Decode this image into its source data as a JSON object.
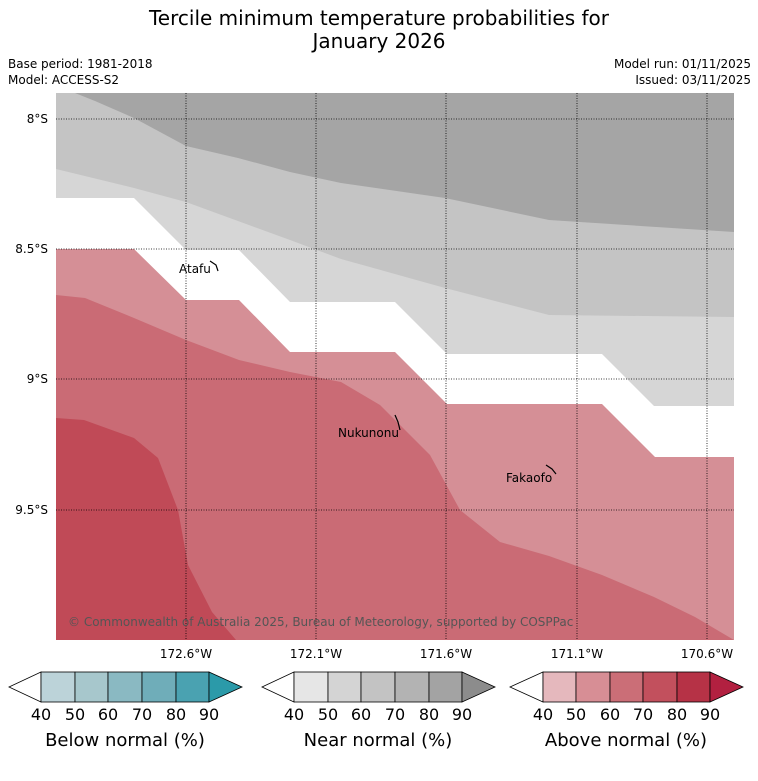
{
  "header": {
    "title_line1": "Tercile minimum temperature probabilities for",
    "title_line2": "January 2026",
    "base_period": "Base period: 1981-2018",
    "model": "Model: ACCESS-S2",
    "model_run": "Model run: 01/11/2025",
    "issued": "Issued: 03/11/2025"
  },
  "map": {
    "lat_labels": [
      "8°S",
      "8.5°S",
      "9°S",
      "9.5°S"
    ],
    "lon_labels": [
      "172.6°W",
      "172.1°W",
      "171.6°W",
      "171.1°W",
      "170.6°W"
    ],
    "places": [
      "Atafu",
      "Nukunonu",
      "Fakaofo"
    ],
    "copyright": "© Commonwealth of Australia 2025, Bureau of Meteorology, supported by COSPPac",
    "colors": {
      "near_50": "#d6d6d6",
      "near_60": "#c4c4c4",
      "near_70": "#a5a5a5",
      "above_50": "#d58f96",
      "above_60": "#ca6b75",
      "above_70": "#c04a57"
    }
  },
  "colorbars": {
    "ticks": [
      "40",
      "50",
      "60",
      "70",
      "80",
      "90"
    ],
    "below": {
      "label": "Below normal (%)",
      "colors": [
        "#ffffff",
        "#bcd3d9",
        "#a7c7cc",
        "#8ab9c2",
        "#6fadb9",
        "#4aa2b1",
        "#2b9aa9"
      ]
    },
    "near": {
      "label": "Near normal (%)",
      "colors": [
        "#ffffff",
        "#e6e6e6",
        "#d4d4d4",
        "#c3c3c3",
        "#b3b3b3",
        "#a3a3a3",
        "#8c8c8c"
      ]
    },
    "above": {
      "label": "Above normal (%)",
      "colors": [
        "#ffffff",
        "#e5b8bd",
        "#d78e95",
        "#cb6e77",
        "#c2505d",
        "#b63246",
        "#b22040"
      ]
    }
  }
}
